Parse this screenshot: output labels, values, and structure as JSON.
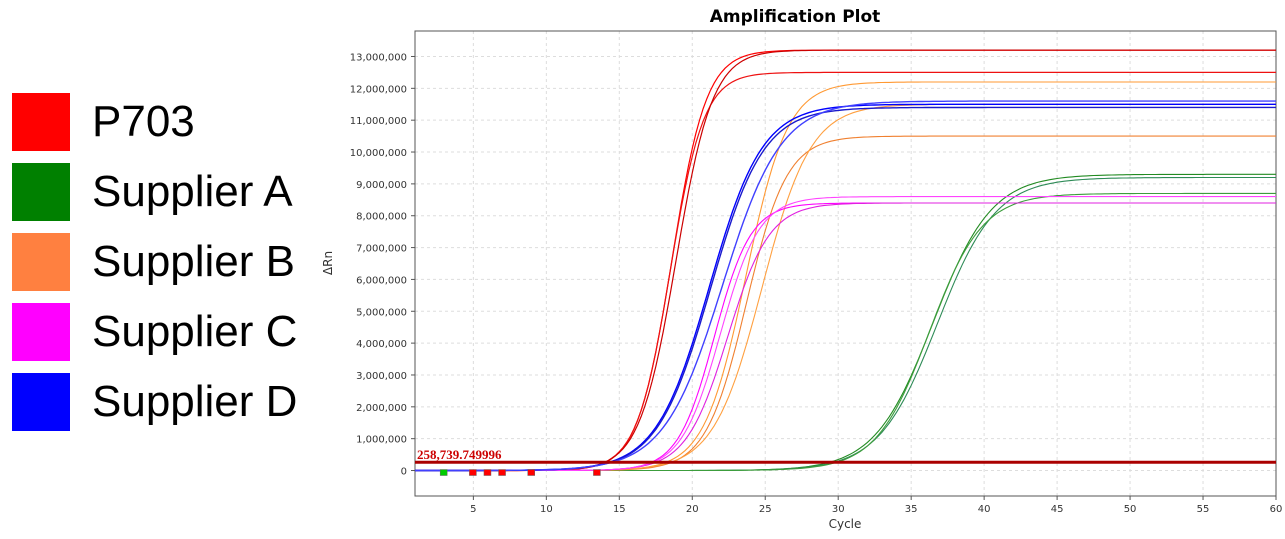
{
  "legend": {
    "items": [
      {
        "label": "P703",
        "color": "#ff0000"
      },
      {
        "label": "Supplier A",
        "color": "#008000"
      },
      {
        "label": "Supplier B",
        "color": "#ff8040"
      },
      {
        "label": "Supplier C",
        "color": "#ff00ff"
      },
      {
        "label": "Supplier D",
        "color": "#0000ff"
      }
    ]
  },
  "chart_data": {
    "type": "line",
    "title": "Amplification Plot",
    "xlabel": "Cycle",
    "ylabel": "ΔRn",
    "xlim": [
      1,
      60
    ],
    "ylim": [
      -800000,
      13800000
    ],
    "xticks": [
      5,
      10,
      15,
      20,
      25,
      30,
      35,
      40,
      45,
      50,
      55,
      60
    ],
    "xtick_labels": [
      "5",
      "10",
      "15",
      "20",
      "25",
      "30",
      "35",
      "40",
      "45",
      "50",
      "55",
      "60"
    ],
    "yticks": [
      0,
      1000000,
      2000000,
      3000000,
      4000000,
      5000000,
      6000000,
      7000000,
      8000000,
      9000000,
      10000000,
      11000000,
      12000000,
      13000000
    ],
    "ytick_labels": [
      "0",
      "1,000,000",
      "2,000,000",
      "3,000,000",
      "4,000,000",
      "5,000,000",
      "6,000,000",
      "7,000,000",
      "8,000,000",
      "9,000,000",
      "10,000,000",
      "11,000,000",
      "12,000,000",
      "13,000,000"
    ],
    "grid": true,
    "threshold": {
      "value": 258739.749996,
      "label": "258,739.749996",
      "color": "#aa0000"
    },
    "series": [
      {
        "group": "P703",
        "color": "#ff0000",
        "ct": 14.0,
        "max": 13200000,
        "k": 0.85,
        "width": 1.2
      },
      {
        "group": "P703",
        "color": "#ee1111",
        "ct": 14.05,
        "max": 12500000,
        "k": 0.87,
        "width": 1.2
      },
      {
        "group": "P703",
        "color": "#cc0000",
        "ct": 14.0,
        "max": 13200000,
        "k": 0.8,
        "width": 1.2
      },
      {
        "group": "Supplier A",
        "color": "#228b22",
        "ct": 29.4,
        "max": 9300000,
        "k": 0.5,
        "width": 1.1
      },
      {
        "group": "Supplier A",
        "color": "#2e8b57",
        "ct": 29.7,
        "max": 9200000,
        "k": 0.5,
        "width": 1.1
      },
      {
        "group": "Supplier A",
        "color": "#3c9d3c",
        "ct": 29.9,
        "max": 8700000,
        "k": 0.55,
        "width": 1.1
      },
      {
        "group": "Supplier B",
        "color": "#ff9933",
        "ct": 18.2,
        "max": 12200000,
        "k": 0.7,
        "width": 1.1
      },
      {
        "group": "Supplier B",
        "color": "#f08030",
        "ct": 18.6,
        "max": 10500000,
        "k": 0.72,
        "width": 1.1
      },
      {
        "group": "Supplier B",
        "color": "#ffa040",
        "ct": 18.5,
        "max": 11500000,
        "k": 0.6,
        "width": 1.1
      },
      {
        "group": "Supplier C",
        "color": "#ff00ff",
        "ct": 17.2,
        "max": 8400000,
        "k": 0.8,
        "width": 1.1
      },
      {
        "group": "Supplier C",
        "color": "#e020e0",
        "ct": 17.5,
        "max": 8400000,
        "k": 0.7,
        "width": 1.1
      },
      {
        "group": "Supplier C",
        "color": "#ff44ff",
        "ct": 17.3,
        "max": 8600000,
        "k": 0.75,
        "width": 1.1
      },
      {
        "group": "Supplier D",
        "color": "#0000ff",
        "ct": 14.3,
        "max": 11500000,
        "k": 0.55,
        "width": 1.4
      },
      {
        "group": "Supplier D",
        "color": "#1a1acc",
        "ct": 14.4,
        "max": 11400000,
        "k": 0.55,
        "width": 1.4
      },
      {
        "group": "Supplier D",
        "color": "#4040ff",
        "ct": 14.5,
        "max": 11600000,
        "k": 0.5,
        "width": 1.4
      }
    ]
  }
}
